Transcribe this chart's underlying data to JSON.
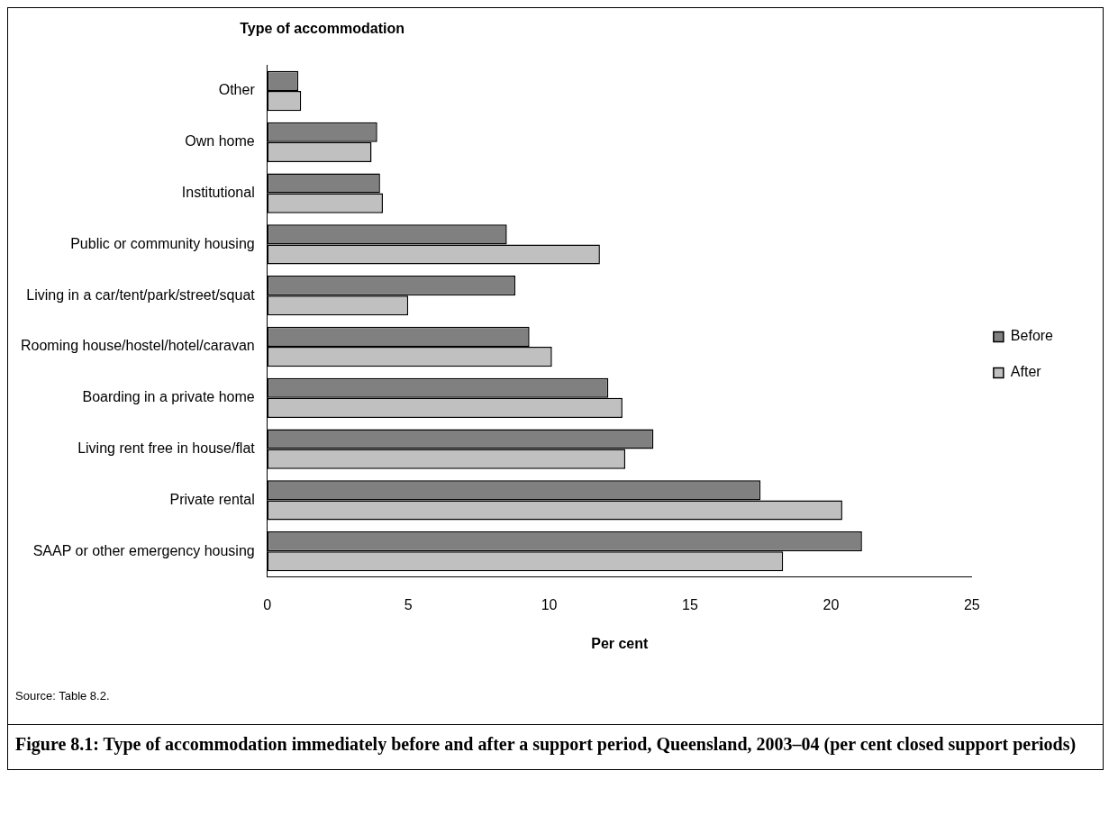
{
  "chart_data": {
    "type": "bar",
    "orientation": "horizontal",
    "title": "Figure 8.1: Type of accommodation immediately before and after a support period, Queensland, 2003–04 (per cent closed support periods)",
    "xlabel": "Per cent",
    "ylabel": "Type of accommodation",
    "annotations": [
      "Source: Table 8.2."
    ],
    "categories": [
      "Other",
      "Own home",
      "Institutional",
      "Public or community housing",
      "Living in a car/tent/park/street/squat",
      "Rooming house/hostel/hotel/caravan",
      "Boarding in a private home",
      "Living rent free in house/flat",
      "Private rental",
      "SAAP or other emergency housing"
    ],
    "series": [
      {
        "name": "Before",
        "color": "#808080",
        "values": [
          1.1,
          3.9,
          4.0,
          8.5,
          8.8,
          9.3,
          12.1,
          13.7,
          17.5,
          21.1
        ]
      },
      {
        "name": "After",
        "color": "#c0c0c0",
        "values": [
          1.2,
          3.7,
          4.1,
          11.8,
          5.0,
          10.1,
          12.6,
          12.7,
          20.4,
          18.3
        ]
      }
    ],
    "xlim": [
      0,
      25
    ],
    "xticks": [
      0,
      5,
      10,
      15,
      20,
      25
    ],
    "grid": false,
    "legend": "right"
  }
}
